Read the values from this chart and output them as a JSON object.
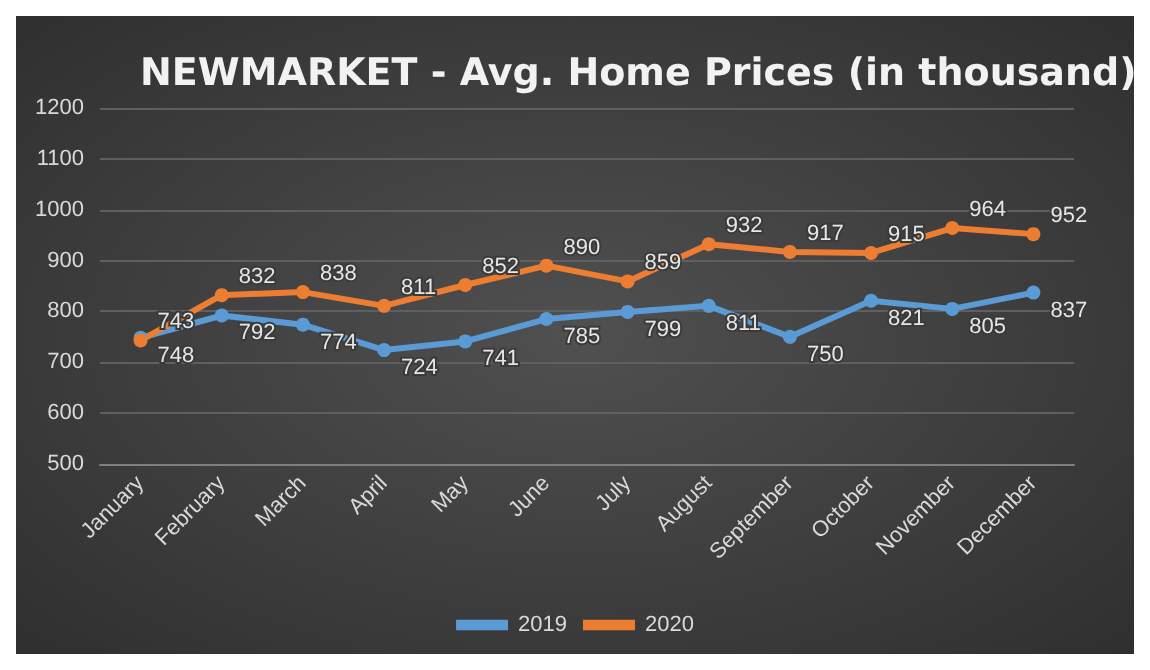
{
  "chart_data": {
    "type": "line",
    "title": "NEWMARKET - Avg. Home Prices (in thousand)",
    "categories": [
      "January",
      "February",
      "March",
      "April",
      "May",
      "June",
      "July",
      "August",
      "September",
      "October",
      "November",
      "December"
    ],
    "series": [
      {
        "name": "2019",
        "color": "#5b9bd5",
        "values": [
          748,
          792,
          774,
          724,
          741,
          785,
          799,
          811,
          750,
          821,
          805,
          837
        ]
      },
      {
        "name": "2020",
        "color": "#ed7d31",
        "values": [
          743,
          832,
          838,
          811,
          852,
          890,
          859,
          932,
          917,
          915,
          964,
          952
        ]
      }
    ],
    "ylim": [
      500,
      1200
    ],
    "yticks": [
      500,
      600,
      700,
      800,
      900,
      1000,
      1100,
      1200
    ],
    "grid": "y",
    "legend": "bottom",
    "marker": "circle",
    "line_style": "solid",
    "data_labels": true
  }
}
